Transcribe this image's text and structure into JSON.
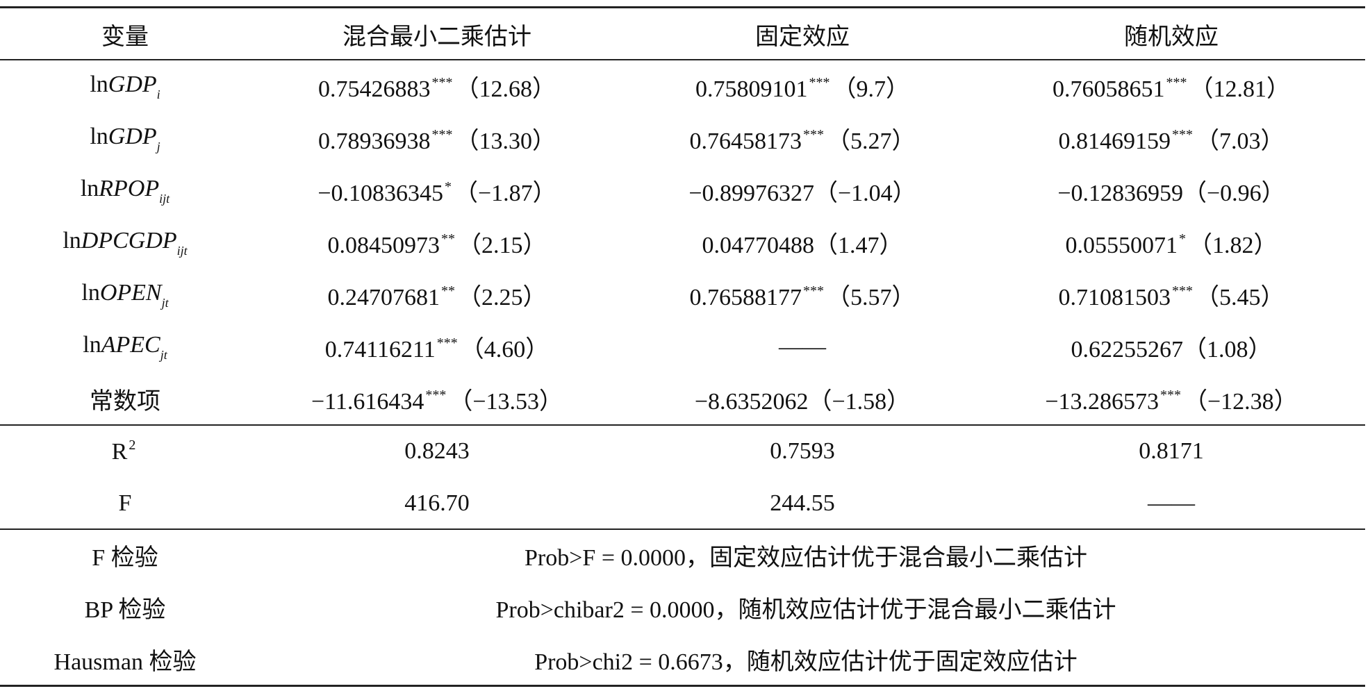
{
  "table": {
    "header": [
      "变量",
      "混合最小二乘估计",
      "固定效应",
      "随机效应"
    ],
    "rows": [
      {
        "variable": {
          "prefix": "ln",
          "name": "GDP",
          "sub": "i"
        },
        "cells": [
          {
            "coef": "0.75426883",
            "stars": "***",
            "t": "（12.68）"
          },
          {
            "coef": "0.75809101",
            "stars": "***",
            "t": "（9.7）"
          },
          {
            "coef": "0.76058651",
            "stars": "***",
            "t": "（12.81）"
          }
        ]
      },
      {
        "variable": {
          "prefix": "ln",
          "name": "GDP",
          "sub": "j"
        },
        "cells": [
          {
            "coef": "0.78936938",
            "stars": "***",
            "t": "（13.30）"
          },
          {
            "coef": "0.76458173",
            "stars": "***",
            "t": "（5.27）"
          },
          {
            "coef": "0.81469159",
            "stars": "***",
            "t": "（7.03）"
          }
        ]
      },
      {
        "variable": {
          "prefix": "ln",
          "name": "RPOP",
          "sub": "ijt"
        },
        "cells": [
          {
            "coef": "−0.10836345",
            "stars": "*",
            "t": "（−1.87）"
          },
          {
            "coef": "−0.89976327",
            "t": "（−1.04）"
          },
          {
            "coef": "−0.12836959",
            "t": "（−0.96）"
          }
        ]
      },
      {
        "variable": {
          "prefix": "ln",
          "name": "DPCGDP",
          "sub": "ijt"
        },
        "cells": [
          {
            "coef": "0.08450973",
            "stars": "**",
            "t": "（2.15）"
          },
          {
            "coef": "0.04770488",
            "t": "（1.47）"
          },
          {
            "coef": "0.05550071",
            "stars": "*",
            "t": "（1.82）"
          }
        ]
      },
      {
        "variable": {
          "prefix": "ln",
          "name": "OPEN",
          "sub": "jt"
        },
        "cells": [
          {
            "coef": "0.24707681",
            "stars": "**",
            "t": "（2.25）"
          },
          {
            "coef": "0.76588177",
            "stars": "***",
            "t": "（5.57）"
          },
          {
            "coef": "0.71081503",
            "stars": "***",
            "t": "（5.45）"
          }
        ]
      },
      {
        "variable": {
          "prefix": "ln",
          "name": "APEC",
          "sub": "jt"
        },
        "cells": [
          {
            "coef": "0.74116211",
            "stars": "***",
            "t": "（4.60）"
          },
          {
            "coef": "——"
          },
          {
            "coef": "0.62255267",
            "t": "（1.08）"
          }
        ]
      },
      {
        "variable": {
          "prefix": "常数项"
        },
        "cells": [
          {
            "coef": "−11.616434",
            "stars": "***",
            "t": "（−13.53）"
          },
          {
            "coef": "−8.6352062",
            "t": "（−1.58）"
          },
          {
            "coef": "−13.286573",
            "stars": "***",
            "t": "（−12.38）"
          }
        ]
      }
    ],
    "stats": [
      {
        "label": "R",
        "sup": "2",
        "values": [
          "0.8243",
          "0.7593",
          "0.8171"
        ]
      },
      {
        "label": "F",
        "values": [
          "416.70",
          "244.55",
          "——"
        ]
      }
    ],
    "tests": [
      {
        "label": "F 检验",
        "text": "Prob>F = 0.0000，固定效应估计优于混合最小二乘估计"
      },
      {
        "label": "BP 检验",
        "text": "Prob>chibar2 = 0.0000，随机效应估计优于混合最小二乘估计"
      },
      {
        "label": "Hausman 检验",
        "text": "Prob>chi2 = 0.6673，随机效应估计优于固定效应估计"
      }
    ]
  }
}
